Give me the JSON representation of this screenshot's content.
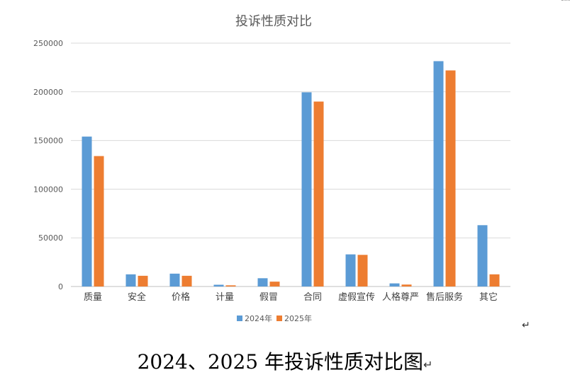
{
  "chart_data": {
    "type": "bar",
    "title": "投诉性质对比",
    "categories": [
      "质量",
      "安全",
      "价格",
      "计量",
      "假冒",
      "合同",
      "虚假宣传",
      "人格尊严",
      "售后服务",
      "其它"
    ],
    "series": [
      {
        "name": "2024年",
        "color": "#5B9BD5",
        "values": [
          154000,
          12500,
          13200,
          1800,
          8500,
          199500,
          33000,
          3200,
          231500,
          63000
        ]
      },
      {
        "name": "2025年",
        "color": "#ED7D31",
        "values": [
          134000,
          11000,
          11000,
          1200,
          5000,
          190000,
          32500,
          2000,
          222000,
          12500
        ]
      }
    ],
    "ylim": [
      0,
      250000
    ],
    "yticks": [
      "0",
      "50000",
      "100000",
      "150000",
      "200000",
      "250000"
    ],
    "grid": true,
    "legend_position": "bottom"
  },
  "caption": {
    "text": "2024、2025 年投诉性质对比图",
    "mark": "↵"
  },
  "para_mark": "↵"
}
